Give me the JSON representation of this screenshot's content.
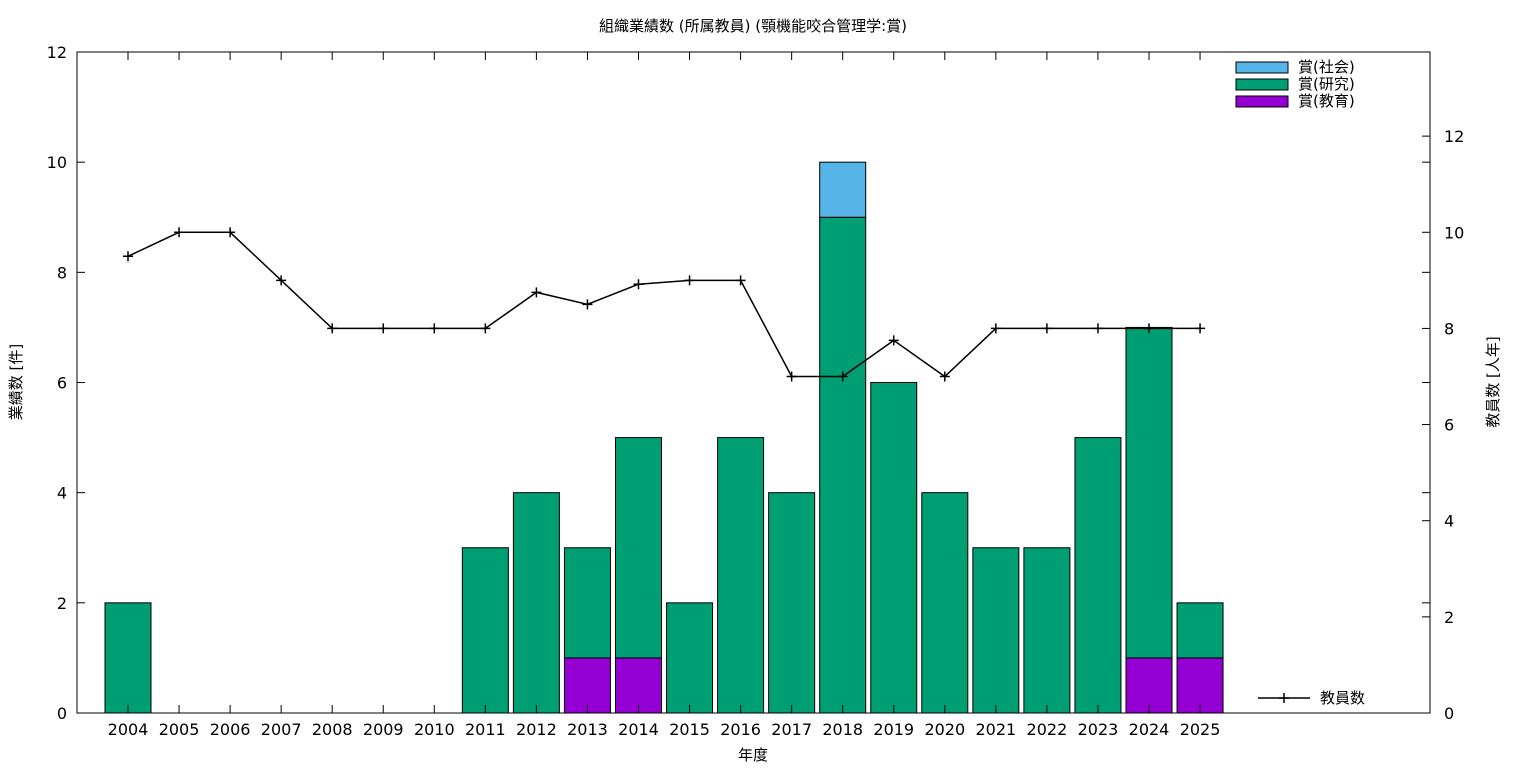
{
  "chart_data": {
    "type": "bar",
    "title": "組織業績数 (所属教員) (顎機能咬合管理学:賞)",
    "xlabel": "年度",
    "ylabel": "業績数 [件]",
    "y2label": "教員数 [人年]",
    "ylim": [
      0,
      12
    ],
    "y2lim": [
      0,
      13.75
    ],
    "yticks": [
      0,
      2,
      4,
      6,
      8,
      10,
      12
    ],
    "y2ticks": [
      0,
      2,
      4,
      6,
      8,
      10,
      12
    ],
    "grid": false,
    "legend_position": "top-right",
    "line_legend_position": "bottom-right",
    "stacked": true,
    "categories": [
      "2004",
      "2005",
      "2006",
      "2007",
      "2008",
      "2009",
      "2010",
      "2011",
      "2012",
      "2013",
      "2014",
      "2015",
      "2016",
      "2017",
      "2018",
      "2019",
      "2020",
      "2021",
      "2022",
      "2023",
      "2024",
      "2025"
    ],
    "series": [
      {
        "name": "賞(教育)",
        "color": "#9400d3",
        "values": [
          0,
          0,
          0,
          0,
          0,
          0,
          0,
          0,
          0,
          1,
          1,
          0,
          0,
          0,
          0,
          0,
          0,
          0,
          0,
          0,
          1,
          1
        ]
      },
      {
        "name": "賞(研究)",
        "color": "#009e73",
        "values": [
          2,
          0,
          0,
          0,
          0,
          0,
          0,
          3,
          4,
          2,
          4,
          2,
          5,
          4,
          9,
          6,
          4,
          3,
          3,
          5,
          6,
          1
        ]
      },
      {
        "name": "賞(社会)",
        "color": "#56b4e9",
        "values": [
          0,
          0,
          0,
          0,
          0,
          0,
          0,
          0,
          0,
          0,
          0,
          0,
          0,
          0,
          1,
          0,
          0,
          0,
          0,
          0,
          0,
          0
        ]
      }
    ],
    "legend_order": [
      "賞(社会)",
      "賞(研究)",
      "賞(教育)"
    ],
    "line": {
      "name": "教員数",
      "color": "#000000",
      "axis": "y2",
      "values": [
        9.5,
        10,
        10,
        9,
        8,
        8,
        8,
        8,
        8.75,
        8.5,
        8.92,
        9,
        9,
        7,
        7,
        7.75,
        7,
        8,
        8,
        8,
        8,
        8
      ]
    }
  }
}
